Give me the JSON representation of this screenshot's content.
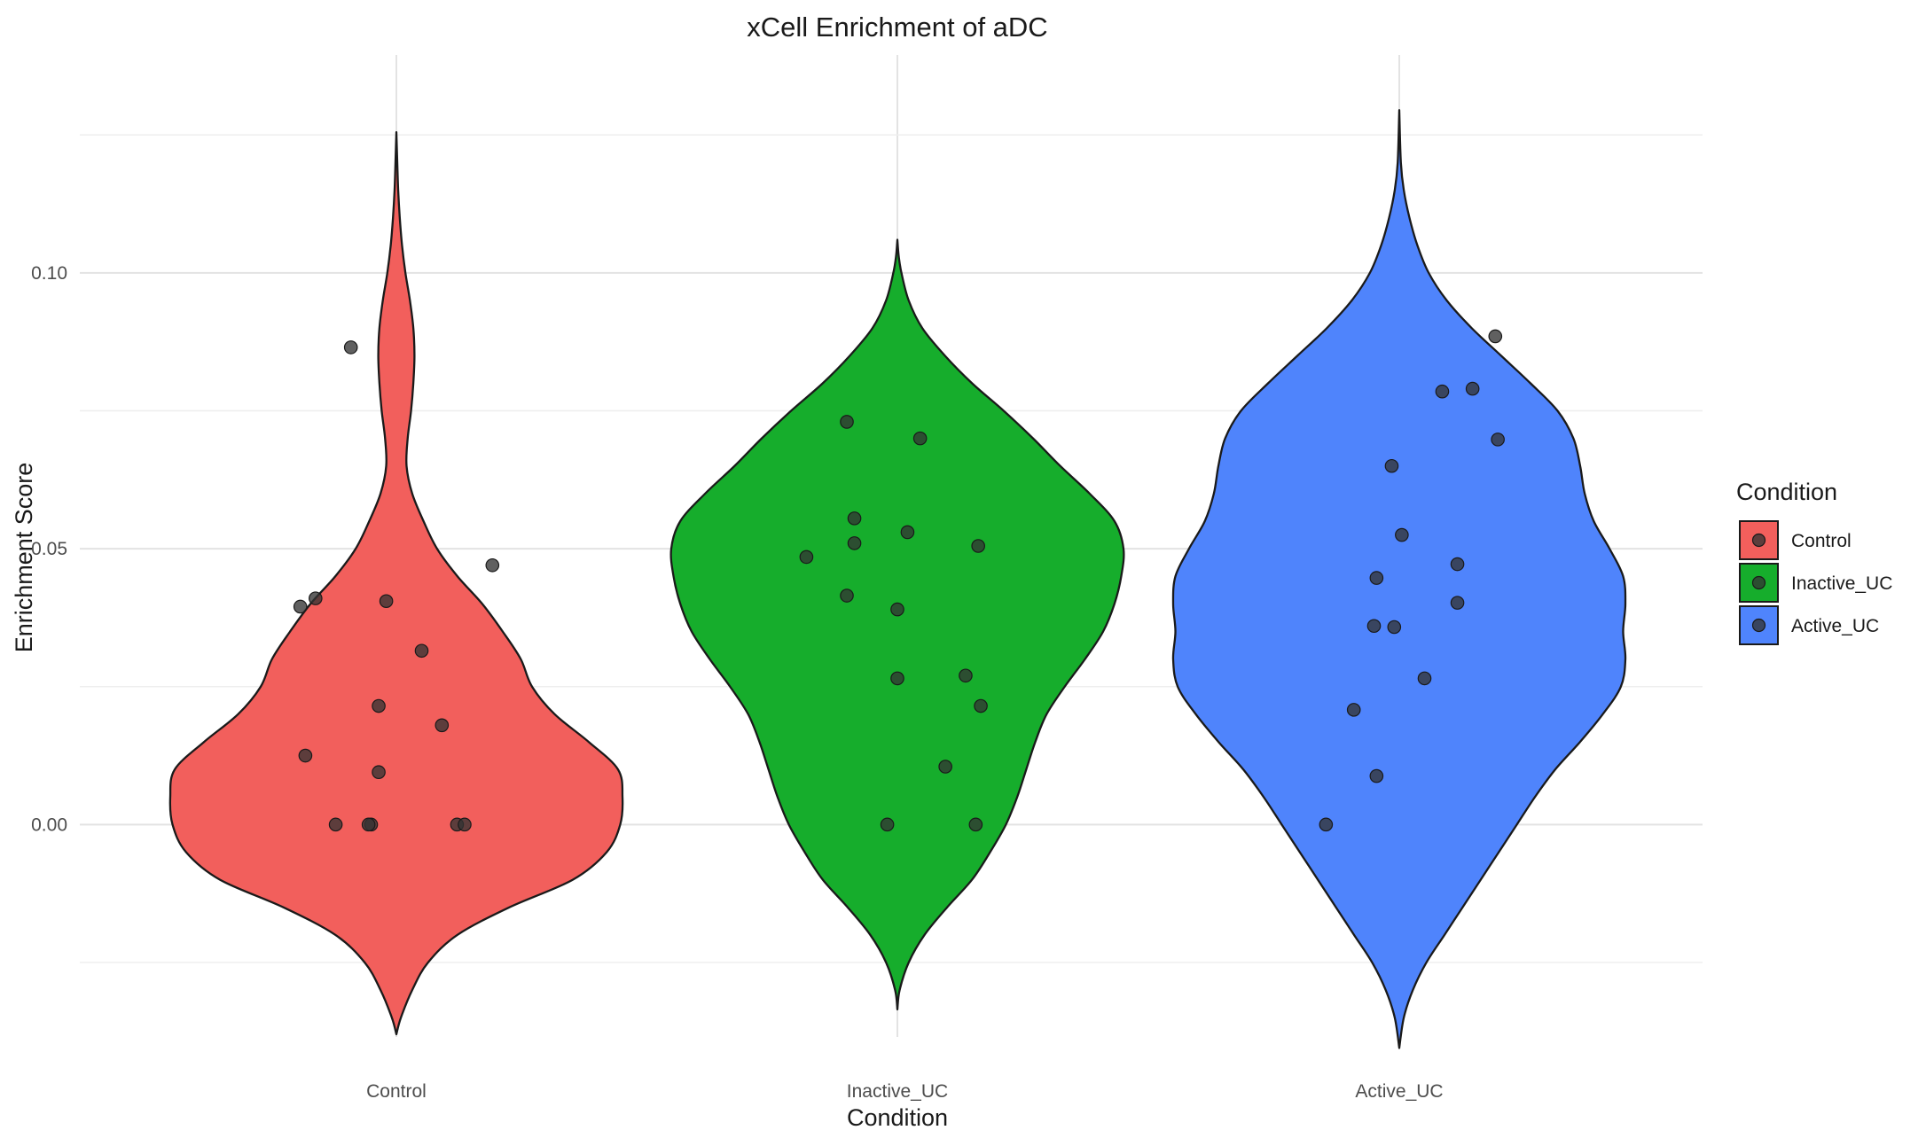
{
  "chart_data": {
    "type": "violin",
    "title": "xCell Enrichment of aDC",
    "xlabel": "Condition",
    "ylabel": "Enrichment Score",
    "categories": [
      "Control",
      "Inactive_UC",
      "Active_UC"
    ],
    "yticks": [
      0.0,
      0.05,
      0.1
    ],
    "ytick_labels": [
      "0.00",
      "0.05",
      "0.10"
    ],
    "ylim": [
      -0.0385,
      0.1395
    ],
    "grid": true,
    "legend": {
      "title": "Condition",
      "position": "right",
      "entries": [
        "Control",
        "Inactive_UC",
        "Active_UC"
      ]
    },
    "colors": {
      "Control": "#F25F5C",
      "Inactive_UC": "#16AD2C",
      "Active_UC": "#4F84FC",
      "point": "#333333",
      "outline": "#1a1a1a"
    },
    "series": [
      {
        "name": "Control",
        "violin_range": [
          -0.038,
          0.1255
        ],
        "density_profile": [
          [
            -0.038,
            0.0
          ],
          [
            -0.035,
            0.02
          ],
          [
            -0.03,
            0.07
          ],
          [
            -0.025,
            0.14
          ],
          [
            -0.02,
            0.27
          ],
          [
            -0.015,
            0.5
          ],
          [
            -0.01,
            0.78
          ],
          [
            -0.005,
            0.93
          ],
          [
            0.0,
            0.99
          ],
          [
            0.005,
            1.0
          ],
          [
            0.01,
            0.98
          ],
          [
            0.015,
            0.85
          ],
          [
            0.02,
            0.7
          ],
          [
            0.025,
            0.6
          ],
          [
            0.03,
            0.55
          ],
          [
            0.035,
            0.47
          ],
          [
            0.04,
            0.38
          ],
          [
            0.045,
            0.27
          ],
          [
            0.05,
            0.18
          ],
          [
            0.055,
            0.12
          ],
          [
            0.06,
            0.07
          ],
          [
            0.065,
            0.045
          ],
          [
            0.07,
            0.05
          ],
          [
            0.075,
            0.065
          ],
          [
            0.08,
            0.075
          ],
          [
            0.085,
            0.08
          ],
          [
            0.09,
            0.075
          ],
          [
            0.095,
            0.06
          ],
          [
            0.1,
            0.04
          ],
          [
            0.105,
            0.025
          ],
          [
            0.11,
            0.015
          ],
          [
            0.115,
            0.008
          ],
          [
            0.12,
            0.004
          ],
          [
            0.1255,
            0.0
          ]
        ],
        "points": [
          {
            "jitter": -0.19,
            "value": 0.0395
          },
          {
            "jitter": -0.16,
            "value": 0.041
          },
          {
            "jitter": -0.09,
            "value": 0.0865
          },
          {
            "jitter": -0.18,
            "value": 0.0125
          },
          {
            "jitter": -0.12,
            "value": 0.0
          },
          {
            "jitter": -0.05,
            "value": 0.0
          },
          {
            "jitter": -0.055,
            "value": 0.0
          },
          {
            "jitter": -0.035,
            "value": 0.0215
          },
          {
            "jitter": -0.035,
            "value": 0.0095
          },
          {
            "jitter": -0.02,
            "value": 0.0405
          },
          {
            "jitter": 0.05,
            "value": 0.0315
          },
          {
            "jitter": 0.09,
            "value": 0.018
          },
          {
            "jitter": 0.12,
            "value": 0.0
          },
          {
            "jitter": 0.135,
            "value": 0.0
          },
          {
            "jitter": 0.19,
            "value": 0.047
          }
        ]
      },
      {
        "name": "Inactive_UC",
        "violin_range": [
          -0.0335,
          0.106
        ],
        "density_profile": [
          [
            -0.0335,
            0.0
          ],
          [
            -0.03,
            0.01
          ],
          [
            -0.025,
            0.05
          ],
          [
            -0.02,
            0.12
          ],
          [
            -0.015,
            0.22
          ],
          [
            -0.01,
            0.33
          ],
          [
            -0.005,
            0.41
          ],
          [
            0.0,
            0.48
          ],
          [
            0.005,
            0.53
          ],
          [
            0.01,
            0.57
          ],
          [
            0.015,
            0.61
          ],
          [
            0.02,
            0.66
          ],
          [
            0.025,
            0.74
          ],
          [
            0.03,
            0.83
          ],
          [
            0.035,
            0.91
          ],
          [
            0.04,
            0.96
          ],
          [
            0.045,
            0.99
          ],
          [
            0.05,
            1.0
          ],
          [
            0.055,
            0.96
          ],
          [
            0.06,
            0.85
          ],
          [
            0.065,
            0.72
          ],
          [
            0.07,
            0.6
          ],
          [
            0.075,
            0.47
          ],
          [
            0.08,
            0.33
          ],
          [
            0.085,
            0.21
          ],
          [
            0.09,
            0.11
          ],
          [
            0.095,
            0.05
          ],
          [
            0.1,
            0.018
          ],
          [
            0.103,
            0.006
          ],
          [
            0.106,
            0.0
          ]
        ],
        "points": [
          {
            "jitter": -0.18,
            "value": 0.0485
          },
          {
            "jitter": -0.1,
            "value": 0.073
          },
          {
            "jitter": -0.085,
            "value": 0.0555
          },
          {
            "jitter": -0.085,
            "value": 0.051
          },
          {
            "jitter": -0.1,
            "value": 0.0415
          },
          {
            "jitter": 0.0,
            "value": 0.039
          },
          {
            "jitter": 0.045,
            "value": 0.07
          },
          {
            "jitter": 0.02,
            "value": 0.053
          },
          {
            "jitter": 0.16,
            "value": 0.0505
          },
          {
            "jitter": 0.0,
            "value": 0.0265
          },
          {
            "jitter": 0.135,
            "value": 0.027
          },
          {
            "jitter": 0.165,
            "value": 0.0215
          },
          {
            "jitter": 0.095,
            "value": 0.0105
          },
          {
            "jitter": -0.02,
            "value": 0.0
          },
          {
            "jitter": 0.155,
            "value": 0.0
          }
        ]
      },
      {
        "name": "Active_UC",
        "violin_range": [
          -0.0405,
          0.1295
        ],
        "density_profile": [
          [
            -0.0405,
            0.0
          ],
          [
            -0.035,
            0.02
          ],
          [
            -0.03,
            0.06
          ],
          [
            -0.025,
            0.12
          ],
          [
            -0.02,
            0.2
          ],
          [
            -0.015,
            0.28
          ],
          [
            -0.01,
            0.36
          ],
          [
            -0.005,
            0.44
          ],
          [
            0.0,
            0.52
          ],
          [
            0.005,
            0.6
          ],
          [
            0.01,
            0.69
          ],
          [
            0.015,
            0.8
          ],
          [
            0.02,
            0.9
          ],
          [
            0.025,
            0.98
          ],
          [
            0.03,
            1.0
          ],
          [
            0.035,
            0.99
          ],
          [
            0.04,
            1.0
          ],
          [
            0.045,
            0.99
          ],
          [
            0.05,
            0.93
          ],
          [
            0.055,
            0.86
          ],
          [
            0.06,
            0.82
          ],
          [
            0.065,
            0.8
          ],
          [
            0.07,
            0.77
          ],
          [
            0.075,
            0.7
          ],
          [
            0.08,
            0.58
          ],
          [
            0.085,
            0.45
          ],
          [
            0.09,
            0.32
          ],
          [
            0.095,
            0.21
          ],
          [
            0.1,
            0.13
          ],
          [
            0.105,
            0.08
          ],
          [
            0.11,
            0.045
          ],
          [
            0.115,
            0.02
          ],
          [
            0.12,
            0.007
          ],
          [
            0.1295,
            0.0
          ]
        ],
        "points": [
          {
            "jitter": 0.19,
            "value": 0.0885
          },
          {
            "jitter": 0.085,
            "value": 0.0785
          },
          {
            "jitter": 0.145,
            "value": 0.079
          },
          {
            "jitter": 0.195,
            "value": 0.0698
          },
          {
            "jitter": -0.015,
            "value": 0.065
          },
          {
            "jitter": 0.005,
            "value": 0.0525
          },
          {
            "jitter": 0.115,
            "value": 0.0472
          },
          {
            "jitter": -0.045,
            "value": 0.0447
          },
          {
            "jitter": 0.115,
            "value": 0.0402
          },
          {
            "jitter": -0.05,
            "value": 0.036
          },
          {
            "jitter": -0.01,
            "value": 0.0358
          },
          {
            "jitter": 0.05,
            "value": 0.0265
          },
          {
            "jitter": -0.09,
            "value": 0.0208
          },
          {
            "jitter": -0.045,
            "value": 0.0088
          },
          {
            "jitter": -0.145,
            "value": 0.0
          }
        ]
      }
    ]
  }
}
